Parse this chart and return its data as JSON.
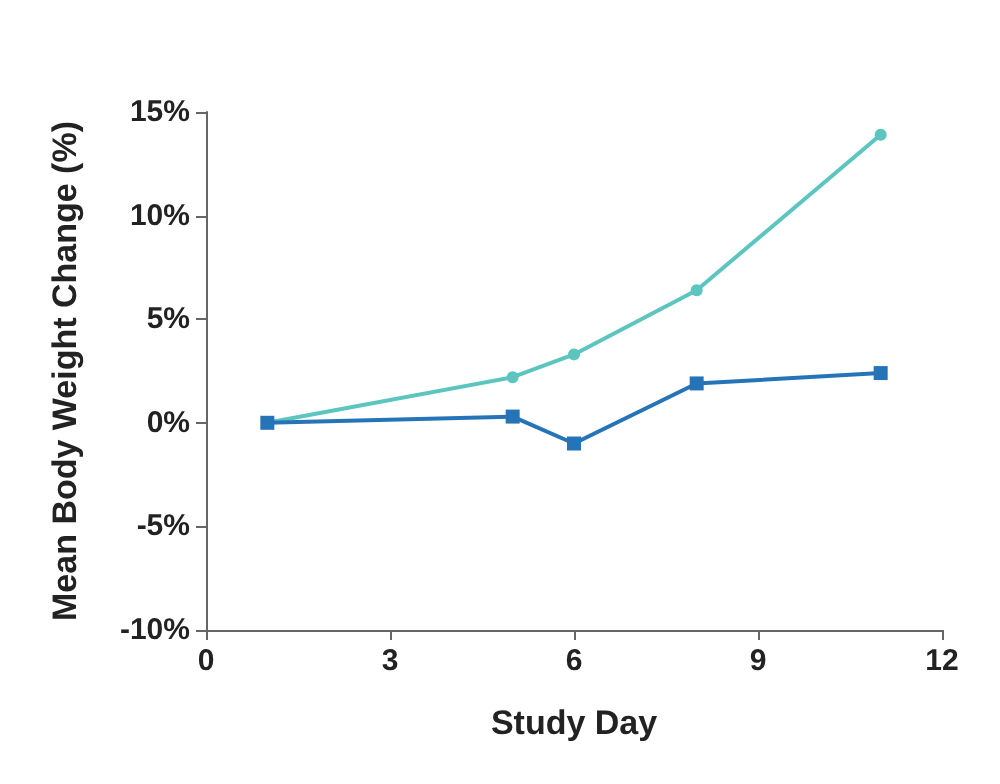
{
  "chart_data": {
    "type": "line",
    "xlabel": "Study Day",
    "ylabel": "Mean Body Weight Change (%)",
    "xlim": [
      0,
      12
    ],
    "xticks": [
      0,
      3,
      6,
      9,
      12
    ],
    "ylim": [
      -10,
      15
    ],
    "yticks": [
      {
        "value": -10,
        "label": "-10%"
      },
      {
        "value": -5,
        "label": "-5%"
      },
      {
        "value": 0,
        "label": "0%"
      },
      {
        "value": 5,
        "label": "5%"
      },
      {
        "value": 10,
        "label": "10%"
      },
      {
        "value": 15,
        "label": "15%"
      }
    ],
    "grid": false,
    "line_style": "solid",
    "series": [
      {
        "color": "#5cc5c0",
        "marker": "circle",
        "x": [
          1,
          5,
          6,
          8,
          11
        ],
        "values": [
          0,
          2.2,
          3.3,
          6.4,
          13.9
        ]
      },
      {
        "color": "#2574b8",
        "marker": "square",
        "x": [
          1,
          5,
          6,
          8,
          11
        ],
        "values": [
          0,
          0.3,
          -1.0,
          1.9,
          2.4
        ]
      }
    ]
  }
}
